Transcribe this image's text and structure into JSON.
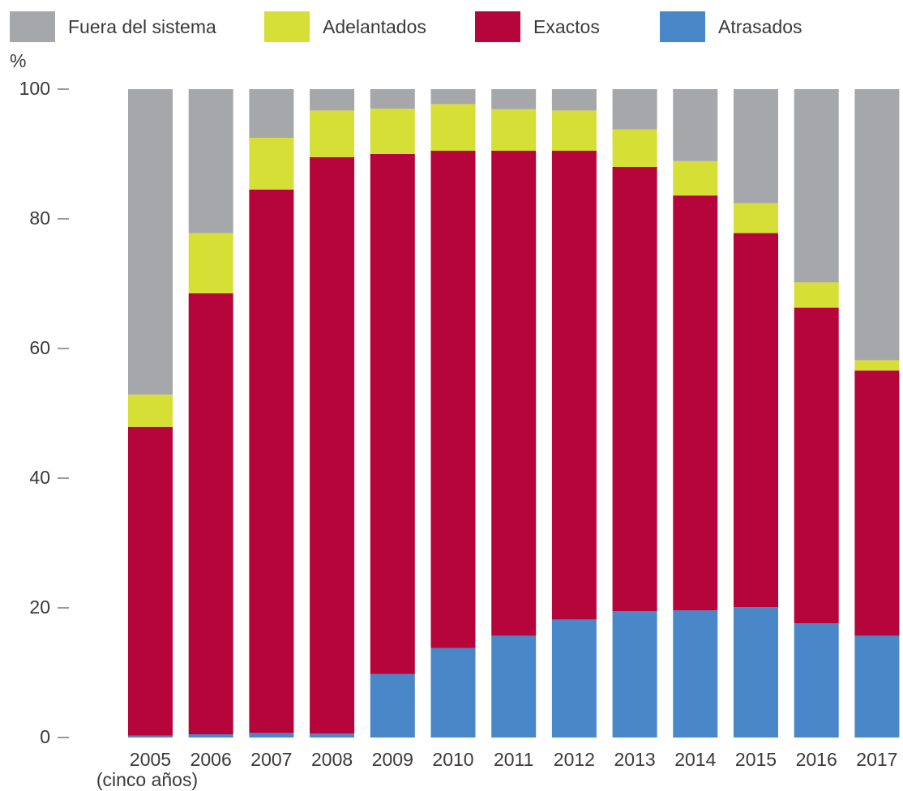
{
  "chart_data": {
    "type": "bar",
    "stacked": true,
    "ylabel": "%",
    "ylim": [
      0,
      100
    ],
    "yticks": [
      "0",
      "20",
      "40",
      "60",
      "80",
      "100"
    ],
    "grid": false,
    "legend_position": "top",
    "categories": [
      "2005",
      "2006",
      "2007",
      "2008",
      "2009",
      "2010",
      "2011",
      "2012",
      "2013",
      "2014",
      "2015",
      "2016",
      "2017"
    ],
    "category_sublabels": [
      "(cinco años)",
      "",
      "",
      "",
      "",
      "",
      "",
      "",
      "",
      "",
      "",
      "",
      ""
    ],
    "series": [
      {
        "name": "Atrasados",
        "color": "#4a87c8",
        "values": [
          0.3,
          0.5,
          0.7,
          0.6,
          9.8,
          13.8,
          15.7,
          18.2,
          19.5,
          19.6,
          20.1,
          17.6,
          15.7
        ]
      },
      {
        "name": "Exactos",
        "color": "#b5053a",
        "values": [
          47.6,
          68.0,
          83.8,
          88.9,
          80.2,
          76.7,
          74.8,
          72.3,
          68.5,
          64.0,
          57.7,
          48.7,
          40.9
        ]
      },
      {
        "name": "Adelantados",
        "color": "#d5df36",
        "values": [
          5.0,
          9.3,
          8.0,
          7.2,
          7.0,
          7.2,
          6.4,
          6.2,
          5.8,
          5.3,
          4.6,
          3.9,
          1.6
        ]
      },
      {
        "name": "Fuera del sistema",
        "color": "#a6a7ab",
        "values": [
          47.1,
          22.2,
          7.5,
          3.3,
          3.0,
          2.3,
          3.1,
          3.3,
          6.2,
          11.1,
          17.6,
          29.8,
          41.8
        ]
      }
    ],
    "legend_order": [
      "Fuera del sistema",
      "Adelantados",
      "Exactos",
      "Atrasados"
    ]
  }
}
